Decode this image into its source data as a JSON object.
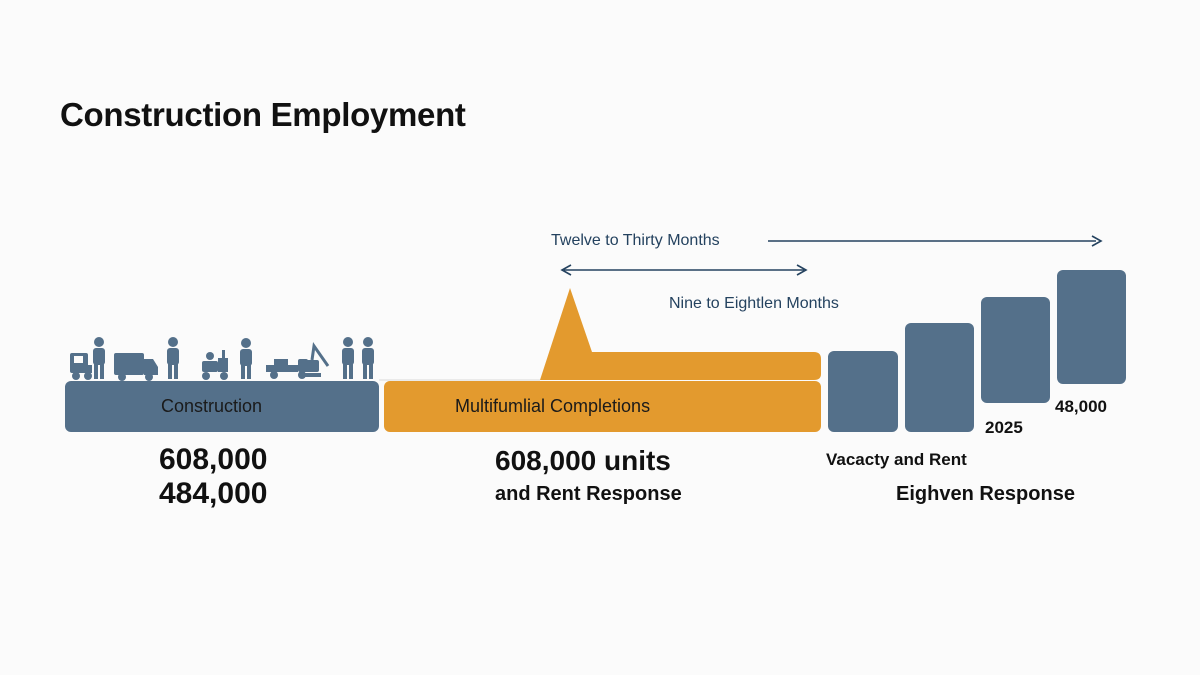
{
  "title": "Construction Employment",
  "arrows": {
    "long_label": "Twelve to Thirty Months",
    "short_label": "Nine to Eightlen Months"
  },
  "stages": {
    "construction_label": "Construction",
    "completions_label": "Multifumlial Completions"
  },
  "figures": {
    "left_line1": "608,000",
    "left_line2": "484,000",
    "mid_line1": "608,000 units",
    "mid_line2": "and Rent Response",
    "right_year": "2025",
    "right_value": "48,000",
    "right_line1": "Vacacty and Rent",
    "right_line2": "Eighven Response"
  },
  "colors": {
    "slate": "#54708a",
    "orange": "#e39a2e",
    "navy": "#24425f"
  },
  "icons": [
    "truck-icon",
    "worker-icon",
    "van-icon",
    "worker-icon",
    "forklift-icon",
    "worker-icon",
    "flatbed-truck-icon",
    "crane-icon",
    "worker-icon",
    "worker-icon"
  ]
}
